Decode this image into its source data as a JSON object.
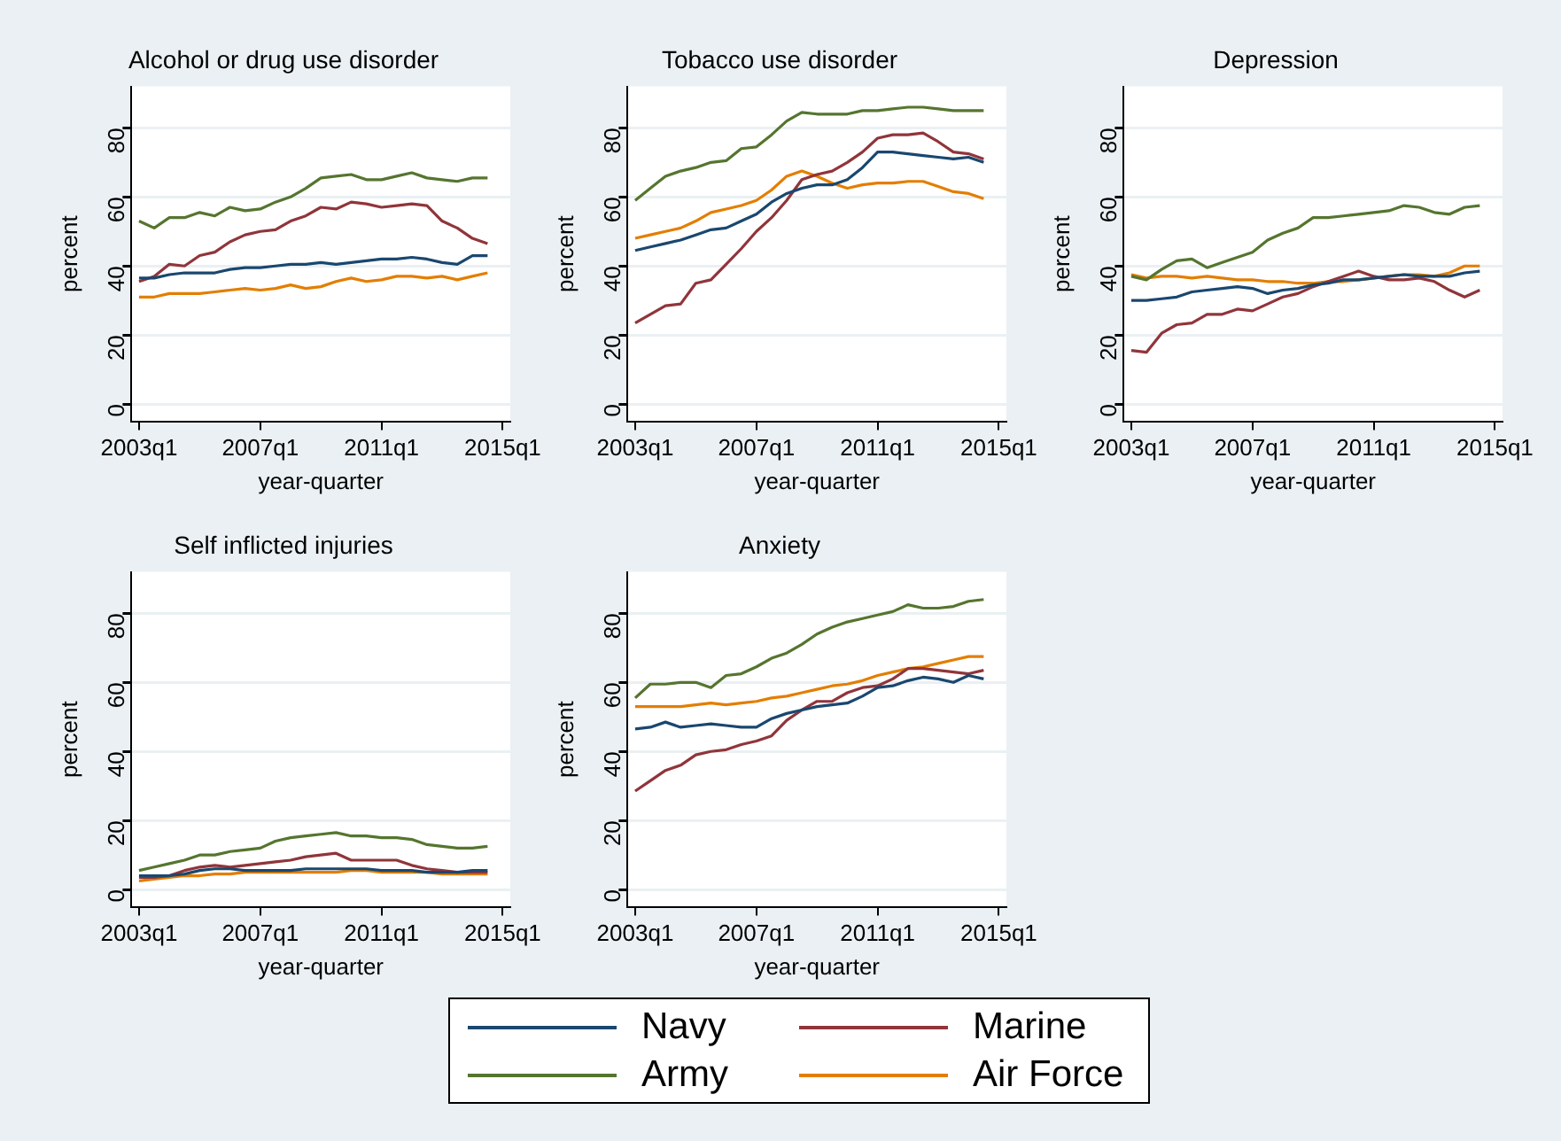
{
  "chart_data": [
    {
      "type": "line",
      "title": "Alcohol or drug use disorder",
      "xlabel": "year-quarter",
      "ylabel": "percent",
      "categories": [
        "2003q1",
        null,
        null,
        null,
        null,
        null,
        null,
        null,
        "2007q1",
        null,
        null,
        null,
        null,
        null,
        null,
        null,
        "2011q1",
        null,
        null,
        null,
        null,
        null,
        null,
        null,
        "2015q1"
      ],
      "ylim": [
        -5,
        92
      ],
      "yticks": [
        0,
        20,
        40,
        60,
        80
      ],
      "grid": "y",
      "series": [
        {
          "color": "#1a476f",
          "values": [
            36.5,
            36.5,
            37.5,
            38,
            38,
            38,
            39,
            39.5,
            39.5,
            40,
            40.5,
            40.5,
            41,
            40.5,
            41,
            41.5,
            42,
            42,
            42.5,
            42,
            41,
            40.5,
            43,
            43,
            null
          ]
        },
        {
          "color": "#90353b",
          "values": [
            35.5,
            37,
            40.5,
            40,
            43,
            44,
            47,
            49,
            50,
            50.5,
            53,
            54.5,
            57,
            56.5,
            58.5,
            58,
            57,
            57.5,
            58,
            57.5,
            53,
            51,
            48,
            46.5,
            null
          ]
        },
        {
          "color": "#55752f",
          "values": [
            53,
            51,
            54,
            54,
            55.5,
            54.5,
            57,
            56,
            56.5,
            58.5,
            60,
            62.5,
            65.5,
            66,
            66.5,
            65,
            65,
            66,
            67,
            65.5,
            65,
            64.5,
            65.5,
            65.5,
            null
          ]
        },
        {
          "color": "#e37e00",
          "values": [
            31,
            31,
            32,
            32,
            32,
            32.5,
            33,
            33.5,
            33,
            33.5,
            34.5,
            33.5,
            34,
            35.5,
            36.5,
            35.5,
            36,
            37,
            37,
            36.5,
            37,
            36,
            37,
            38,
            null
          ]
        }
      ]
    },
    {
      "type": "line",
      "title": "Tobacco use disorder",
      "xlabel": "year-quarter",
      "ylabel": "percent",
      "categories": [
        "2003q1",
        null,
        null,
        null,
        null,
        null,
        null,
        null,
        "2007q1",
        null,
        null,
        null,
        null,
        null,
        null,
        null,
        "2011q1",
        null,
        null,
        null,
        null,
        null,
        null,
        null,
        "2015q1"
      ],
      "ylim": [
        -5,
        92
      ],
      "yticks": [
        0,
        20,
        40,
        60,
        80
      ],
      "grid": "y",
      "series": [
        {
          "color": "#1a476f",
          "values": [
            44.5,
            45.5,
            46.5,
            47.5,
            49,
            50.5,
            51,
            53,
            55,
            58.5,
            61,
            62.5,
            63.5,
            63.5,
            65,
            68.5,
            73,
            73,
            72.5,
            72,
            71.5,
            71,
            71.5,
            70,
            null
          ]
        },
        {
          "color": "#90353b",
          "values": [
            23.5,
            26,
            28.5,
            29,
            35,
            36,
            40.5,
            45,
            50,
            54,
            59,
            65,
            66.5,
            67.5,
            70,
            73,
            77,
            78,
            78,
            78.5,
            76,
            73,
            72.5,
            71,
            null
          ]
        },
        {
          "color": "#55752f",
          "values": [
            59,
            62.5,
            66,
            67.5,
            68.5,
            70,
            70.5,
            74,
            74.5,
            78,
            82,
            84.5,
            84,
            84,
            84,
            85,
            85,
            85.5,
            86,
            86,
            85.5,
            85,
            85,
            85,
            null
          ]
        },
        {
          "color": "#e37e00",
          "values": [
            48,
            49,
            50,
            51,
            53,
            55.5,
            56.5,
            57.5,
            59,
            62,
            66,
            67.5,
            66,
            64,
            62.5,
            63.5,
            64,
            64,
            64.5,
            64.5,
            63,
            61.5,
            61,
            59.5,
            null
          ]
        }
      ]
    },
    {
      "type": "line",
      "title": "Depression",
      "xlabel": "year-quarter",
      "ylabel": "percent",
      "categories": [
        "2003q1",
        null,
        null,
        null,
        null,
        null,
        null,
        null,
        "2007q1",
        null,
        null,
        null,
        null,
        null,
        null,
        null,
        "2011q1",
        null,
        null,
        null,
        null,
        null,
        null,
        null,
        "2015q1"
      ],
      "ylim": [
        -5,
        92
      ],
      "yticks": [
        0,
        20,
        40,
        60,
        80
      ],
      "grid": "y",
      "series": [
        {
          "color": "#1a476f",
          "values": [
            30,
            30,
            30.5,
            31,
            32.5,
            33,
            33.5,
            34,
            33.5,
            32,
            33,
            33.5,
            34.5,
            35,
            36,
            36,
            36.5,
            37,
            37.5,
            37,
            37,
            37,
            38,
            38.5,
            null
          ]
        },
        {
          "color": "#90353b",
          "values": [
            15.5,
            15,
            20.5,
            23,
            23.5,
            26,
            26,
            27.5,
            27,
            29,
            31,
            32,
            34,
            35.5,
            37,
            38.5,
            37,
            36,
            36,
            36.5,
            35.5,
            33,
            31,
            33,
            null
          ]
        },
        {
          "color": "#55752f",
          "values": [
            37,
            36,
            39,
            41.5,
            42,
            39.5,
            41,
            42.5,
            44,
            47.5,
            49.5,
            51,
            54,
            54,
            54.5,
            55,
            55.5,
            56,
            57.5,
            57,
            55.5,
            55,
            57,
            57.5,
            null
          ]
        },
        {
          "color": "#e37e00",
          "values": [
            37.5,
            36.5,
            37,
            37,
            36.5,
            37,
            36.5,
            36,
            36,
            35.5,
            35.5,
            35,
            35,
            35.5,
            35.5,
            36,
            36.5,
            37,
            37.5,
            37.5,
            37,
            38,
            40,
            40,
            null
          ]
        }
      ]
    },
    {
      "type": "line",
      "title": "Self inflicted injuries",
      "xlabel": "year-quarter",
      "ylabel": "percent",
      "categories": [
        "2003q1",
        null,
        null,
        null,
        null,
        null,
        null,
        null,
        "2007q1",
        null,
        null,
        null,
        null,
        null,
        null,
        null,
        "2011q1",
        null,
        null,
        null,
        null,
        null,
        null,
        null,
        "2015q1"
      ],
      "ylim": [
        -5,
        92
      ],
      "yticks": [
        0,
        20,
        40,
        60,
        80
      ],
      "grid": "y",
      "series": [
        {
          "color": "#1a476f",
          "values": [
            4,
            4,
            4,
            4.5,
            5.5,
            6,
            6,
            5.5,
            5.5,
            5.5,
            5.5,
            6,
            6,
            6,
            6,
            6,
            5.5,
            5.5,
            5.5,
            5,
            5,
            5,
            5.5,
            5.5,
            null
          ]
        },
        {
          "color": "#90353b",
          "values": [
            3.5,
            3.5,
            4,
            5.5,
            6.5,
            7,
            6.5,
            7,
            7.5,
            8,
            8.5,
            9.5,
            10,
            10.5,
            8.5,
            8.5,
            8.5,
            8.5,
            7,
            6,
            5.5,
            5,
            5,
            5,
            null
          ]
        },
        {
          "color": "#55752f",
          "values": [
            5.5,
            6.5,
            7.5,
            8.5,
            10,
            10,
            11,
            11.5,
            12,
            14,
            15,
            15.5,
            16,
            16.5,
            15.5,
            15.5,
            15,
            15,
            14.5,
            13,
            12.5,
            12,
            12,
            12.5,
            null
          ]
        },
        {
          "color": "#e37e00",
          "values": [
            2.5,
            3,
            3.5,
            4,
            4,
            4.5,
            4.5,
            5,
            5,
            5,
            5,
            5,
            5,
            5,
            5.5,
            5.5,
            5,
            5,
            5,
            5,
            4.5,
            4.5,
            4.5,
            4.5,
            null
          ]
        }
      ]
    },
    {
      "type": "line",
      "title": "Anxiety",
      "xlabel": "year-quarter",
      "ylabel": "percent",
      "categories": [
        "2003q1",
        null,
        null,
        null,
        null,
        null,
        null,
        null,
        "2007q1",
        null,
        null,
        null,
        null,
        null,
        null,
        null,
        "2011q1",
        null,
        null,
        null,
        null,
        null,
        null,
        null,
        "2015q1"
      ],
      "ylim": [
        -5,
        92
      ],
      "yticks": [
        0,
        20,
        40,
        60,
        80
      ],
      "grid": "y",
      "legend": "bottom",
      "series": [
        {
          "name": "Navy",
          "color": "#1a476f",
          "values": [
            46.5,
            47,
            48.5,
            47,
            47.5,
            48,
            47.5,
            47,
            47,
            49.5,
            51,
            52,
            53,
            53.5,
            54,
            56,
            58.5,
            59,
            60.5,
            61.5,
            61,
            60,
            62,
            61,
            null
          ]
        },
        {
          "name": "Marine",
          "color": "#90353b",
          "values": [
            28.5,
            31.5,
            34.5,
            36,
            39,
            40,
            40.5,
            42,
            43,
            44.5,
            49,
            52,
            54.5,
            54.5,
            57,
            58.5,
            59,
            61,
            64,
            64,
            63.5,
            63,
            62.5,
            63.5,
            null
          ]
        },
        {
          "name": "Army",
          "color": "#55752f",
          "values": [
            55.5,
            59.5,
            59.5,
            60,
            60,
            58.5,
            62,
            62.5,
            64.5,
            67,
            68.5,
            71,
            74,
            76,
            77.5,
            78.5,
            79.5,
            80.5,
            82.5,
            81.5,
            81.5,
            82,
            83.5,
            84,
            null
          ]
        },
        {
          "name": "Air Force",
          "color": "#e37e00",
          "values": [
            53,
            53,
            53,
            53,
            53.5,
            54,
            53.5,
            54,
            54.5,
            55.5,
            56,
            57,
            58,
            59,
            59.5,
            60.5,
            62,
            63,
            64,
            64.5,
            65.5,
            66.5,
            67.5,
            67.5,
            null
          ]
        }
      ]
    }
  ]
}
